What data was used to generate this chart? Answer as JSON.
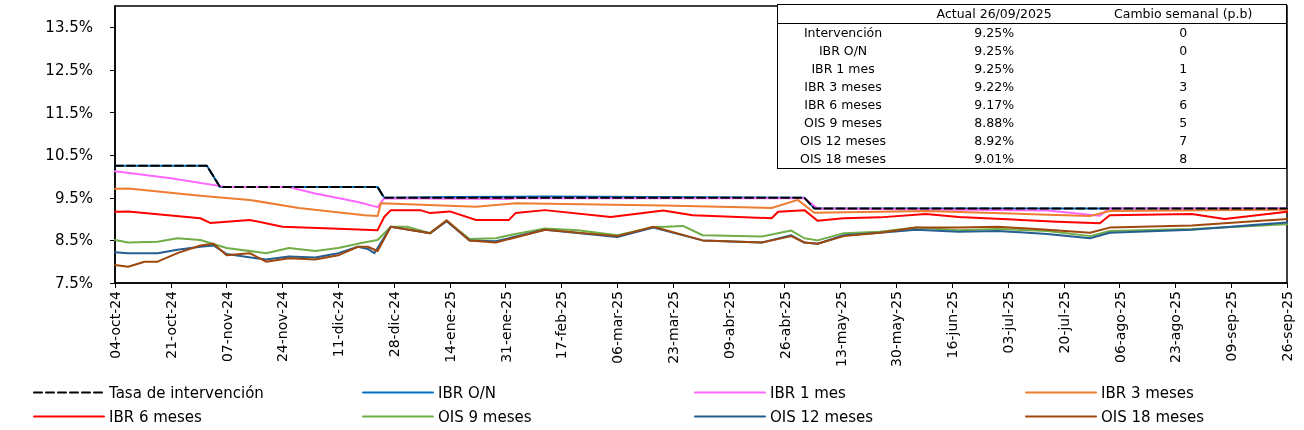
{
  "chart_data": {
    "type": "line",
    "ylim": [
      7.5,
      14
    ],
    "yticks": [
      {
        "value": 7.5,
        "label": "7.5%"
      },
      {
        "value": 8.5,
        "label": "8.5%"
      },
      {
        "value": 9.5,
        "label": "9.5%"
      },
      {
        "value": 10.5,
        "label": "10.5%"
      },
      {
        "value": 11.5,
        "label": "11.5%"
      },
      {
        "value": 12.5,
        "label": "12.5%"
      },
      {
        "value": 13.5,
        "label": "13.5%"
      }
    ],
    "xlim": [
      "2024-10-04",
      "2025-09-26"
    ],
    "xticks": [
      {
        "value": "2024-10-04",
        "label": "04-oct-24"
      },
      {
        "value": "2024-10-21",
        "label": "21-oct-24"
      },
      {
        "value": "2024-11-07",
        "label": "07-nov-24"
      },
      {
        "value": "2024-11-24",
        "label": "24-nov-24"
      },
      {
        "value": "2024-12-11",
        "label": "11-dic-24"
      },
      {
        "value": "2024-12-28",
        "label": "28-dic-24"
      },
      {
        "value": "2025-01-14",
        "label": "14-ene-25"
      },
      {
        "value": "2025-01-31",
        "label": "31-ene-25"
      },
      {
        "value": "2025-02-17",
        "label": "17-feb-25"
      },
      {
        "value": "2025-03-06",
        "label": "06-mar-25"
      },
      {
        "value": "2025-03-23",
        "label": "23-mar-25"
      },
      {
        "value": "2025-04-09",
        "label": "09-abr-25"
      },
      {
        "value": "2025-04-26",
        "label": "26-abr-25"
      },
      {
        "value": "2025-05-13",
        "label": "13-may-25"
      },
      {
        "value": "2025-05-30",
        "label": "30-may-25"
      },
      {
        "value": "2025-06-16",
        "label": "16-jun-25"
      },
      {
        "value": "2025-07-03",
        "label": "03-jul-25"
      },
      {
        "value": "2025-07-20",
        "label": "20-jul-25"
      },
      {
        "value": "2025-08-06",
        "label": "06-ago-25"
      },
      {
        "value": "2025-08-23",
        "label": "23-ago-25"
      },
      {
        "value": "2025-09-09",
        "label": "09-sep-25"
      },
      {
        "value": "2025-09-26",
        "label": "26-sep-25"
      }
    ],
    "grid": false,
    "legend": "bottom",
    "marker": "none",
    "line_style": "solid",
    "series": [
      {
        "name": "Tasa de intervención",
        "color": "#000000",
        "line_style": "dashed",
        "x": [
          "2024-10-04",
          "2024-11-01",
          "2024-11-05",
          "2024-12-23",
          "2024-12-25",
          "2025-05-02",
          "2025-05-05",
          "2025-09-26"
        ],
        "values": [
          10.25,
          10.25,
          9.75,
          9.75,
          9.5,
          9.5,
          9.25,
          9.25
        ]
      },
      {
        "name": "IBR O/N",
        "color": "#0070c0",
        "x": [
          "2024-10-04",
          "2024-11-01",
          "2024-11-05",
          "2024-12-23",
          "2024-12-25",
          "2025-01-15",
          "2025-02-12",
          "2025-05-02",
          "2025-05-05",
          "2025-09-26"
        ],
        "values": [
          10.25,
          10.25,
          9.75,
          9.75,
          9.5,
          9.52,
          9.53,
          9.5,
          9.25,
          9.25
        ]
      },
      {
        "name": "IBR 1 mes",
        "color": "#ff66ff",
        "x": [
          "2024-10-04",
          "2024-10-21",
          "2024-11-07",
          "2024-11-26",
          "2024-12-04",
          "2024-12-17",
          "2024-12-23",
          "2024-12-25",
          "2025-02-01",
          "2025-02-03",
          "2025-05-02",
          "2025-05-06",
          "2025-07-15",
          "2025-07-31",
          "2025-08-03",
          "2025-09-26"
        ],
        "values": [
          10.12,
          9.96,
          9.75,
          9.75,
          9.6,
          9.4,
          9.28,
          9.49,
          9.47,
          9.49,
          9.49,
          9.25,
          9.2,
          9.08,
          9.25,
          9.25
        ]
      },
      {
        "name": "IBR 3 meses",
        "color": "#ed7d31",
        "x": [
          "2024-10-04",
          "2024-10-08",
          "2024-10-30",
          "2024-11-14",
          "2024-11-29",
          "2024-12-19",
          "2024-12-23",
          "2024-12-24",
          "2025-01-22",
          "2025-02-03",
          "2025-03-20",
          "2025-04-22",
          "2025-04-30",
          "2025-05-05",
          "2025-05-25",
          "2025-06-08",
          "2025-07-28",
          "2025-08-03",
          "2025-09-26"
        ],
        "values": [
          9.71,
          9.72,
          9.55,
          9.45,
          9.26,
          9.09,
          9.07,
          9.37,
          9.29,
          9.37,
          9.32,
          9.26,
          9.45,
          9.15,
          9.17,
          9.19,
          9.07,
          9.19,
          9.22
        ]
      },
      {
        "name": "IBR 6 meses",
        "color": "#ff0000",
        "x": [
          "2024-10-04",
          "2024-10-08",
          "2024-10-30",
          "2024-11-02",
          "2024-11-14",
          "2024-11-24",
          "2024-12-09",
          "2024-12-23",
          "2024-12-25",
          "2024-12-27",
          "2025-01-05",
          "2025-01-08",
          "2025-01-14",
          "2025-01-22",
          "2025-02-01",
          "2025-02-03",
          "2025-02-12",
          "2025-03-04",
          "2025-03-20",
          "2025-03-29",
          "2025-04-22",
          "2025-04-24",
          "2025-05-02",
          "2025-05-06",
          "2025-05-14",
          "2025-05-25",
          "2025-06-08",
          "2025-06-18",
          "2025-07-18",
          "2025-07-31",
          "2025-08-03",
          "2025-08-28",
          "2025-09-07",
          "2025-09-26"
        ],
        "values": [
          9.17,
          9.18,
          9.02,
          8.91,
          8.98,
          8.82,
          8.78,
          8.74,
          9.05,
          9.21,
          9.21,
          9.14,
          9.18,
          8.98,
          8.98,
          9.14,
          9.21,
          9.05,
          9.2,
          9.09,
          9.02,
          9.17,
          9.21,
          8.96,
          9.02,
          9.04,
          9.12,
          9.05,
          8.94,
          8.9,
          9.09,
          9.12,
          9.0,
          9.17
        ]
      },
      {
        "name": "OIS 9 meses",
        "color": "#70ad47",
        "x": [
          "2024-10-04",
          "2024-10-08",
          "2024-10-17",
          "2024-10-23",
          "2024-10-30",
          "2024-11-07",
          "2024-11-19",
          "2024-11-26",
          "2024-12-04",
          "2024-12-11",
          "2024-12-18",
          "2024-12-23",
          "2024-12-27",
          "2025-01-01",
          "2025-01-08",
          "2025-01-13",
          "2025-01-20",
          "2025-01-28",
          "2025-02-01",
          "2025-02-12",
          "2025-02-22",
          "2025-03-06",
          "2025-03-17",
          "2025-03-26",
          "2025-04-01",
          "2025-04-19",
          "2025-04-28",
          "2025-05-02",
          "2025-05-06",
          "2025-05-14",
          "2025-05-25",
          "2025-06-05",
          "2025-06-18",
          "2025-06-30",
          "2025-07-15",
          "2025-07-28",
          "2025-08-03",
          "2025-08-28",
          "2025-09-26"
        ],
        "values": [
          8.51,
          8.45,
          8.47,
          8.55,
          8.51,
          8.32,
          8.2,
          8.32,
          8.25,
          8.32,
          8.44,
          8.51,
          8.82,
          8.82,
          8.67,
          8.96,
          8.53,
          8.55,
          8.62,
          8.78,
          8.74,
          8.62,
          8.81,
          8.84,
          8.62,
          8.59,
          8.73,
          8.55,
          8.5,
          8.67,
          8.7,
          8.8,
          8.74,
          8.77,
          8.72,
          8.6,
          8.72,
          8.77,
          8.88
        ]
      },
      {
        "name": "OIS 12 meses",
        "color": "#255e91",
        "x": [
          "2024-10-04",
          "2024-10-08",
          "2024-10-17",
          "2024-10-23",
          "2024-10-30",
          "2024-11-03",
          "2024-11-07",
          "2024-11-19",
          "2024-11-26",
          "2024-12-04",
          "2024-12-11",
          "2024-12-17",
          "2024-12-20",
          "2024-12-22",
          "2024-12-27",
          "2025-01-08",
          "2025-01-13",
          "2025-01-20",
          "2025-01-28",
          "2025-02-12",
          "2025-03-06",
          "2025-03-17",
          "2025-04-01",
          "2025-04-19",
          "2025-04-28",
          "2025-05-02",
          "2025-05-06",
          "2025-05-14",
          "2025-05-25",
          "2025-06-05",
          "2025-06-18",
          "2025-06-30",
          "2025-07-15",
          "2025-07-28",
          "2025-08-03",
          "2025-08-28",
          "2025-09-26"
        ],
        "values": [
          8.22,
          8.2,
          8.2,
          8.28,
          8.35,
          8.38,
          8.18,
          8.05,
          8.12,
          8.1,
          8.2,
          8.35,
          8.3,
          8.2,
          8.82,
          8.67,
          8.95,
          8.5,
          8.48,
          8.75,
          8.58,
          8.8,
          8.5,
          8.45,
          8.62,
          8.45,
          8.42,
          8.62,
          8.68,
          8.75,
          8.7,
          8.72,
          8.65,
          8.55,
          8.68,
          8.75,
          8.92
        ]
      },
      {
        "name": "OIS 18 meses",
        "color": "#9e480e",
        "x": [
          "2024-10-04",
          "2024-10-08",
          "2024-10-13",
          "2024-10-17",
          "2024-10-23",
          "2024-10-30",
          "2024-11-03",
          "2024-11-07",
          "2024-11-14",
          "2024-11-19",
          "2024-11-26",
          "2024-12-04",
          "2024-12-11",
          "2024-12-17",
          "2024-12-20",
          "2024-12-23",
          "2024-12-27",
          "2025-01-08",
          "2025-01-13",
          "2025-01-20",
          "2025-01-28",
          "2025-02-12",
          "2025-03-06",
          "2025-03-17",
          "2025-04-01",
          "2025-04-19",
          "2025-04-28",
          "2025-05-02",
          "2025-05-06",
          "2025-05-14",
          "2025-05-25",
          "2025-06-05",
          "2025-06-18",
          "2025-06-30",
          "2025-07-15",
          "2025-07-28",
          "2025-08-03",
          "2025-08-28",
          "2025-09-26"
        ],
        "values": [
          7.92,
          7.88,
          8.0,
          8.0,
          8.2,
          8.38,
          8.42,
          8.15,
          8.2,
          8.0,
          8.08,
          8.05,
          8.15,
          8.35,
          8.35,
          8.25,
          8.82,
          8.67,
          8.97,
          8.5,
          8.45,
          8.75,
          8.6,
          8.82,
          8.5,
          8.45,
          8.6,
          8.45,
          8.42,
          8.6,
          8.68,
          8.8,
          8.8,
          8.82,
          8.75,
          8.68,
          8.8,
          8.85,
          9.0
        ]
      }
    ],
    "annotations": [
      "Actual 26/09/2025",
      "Cambio semanal (p.b)",
      "Intervención",
      "9.25%",
      "0",
      "IBR O/N",
      "9.25%",
      "0",
      "IBR 1 mes",
      "9.25%",
      "1",
      "IBR 3 meses",
      "9.22%",
      "3",
      "IBR 6 meses",
      "9.17%",
      "6",
      "OIS 9 meses",
      "8.88%",
      "5",
      "OIS 12 meses",
      "8.92%",
      "7",
      "OIS 18 meses",
      "9.01%",
      "8"
    ]
  }
}
